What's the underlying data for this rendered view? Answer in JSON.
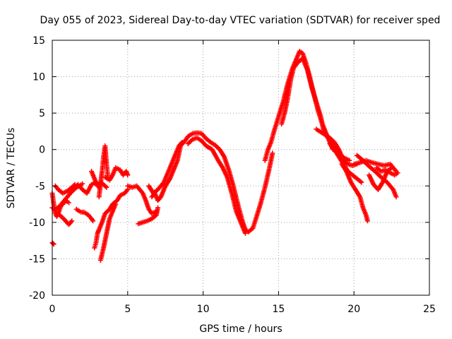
{
  "chart_data": {
    "type": "scatter",
    "title": "Day 055 of 2023, Sidereal Day-to-day VTEC variation (SDTVAR) for receiver sped",
    "xlabel": "GPS time / hours",
    "ylabel": "SDTVAR / TECUs",
    "xlim": [
      0,
      25
    ],
    "ylim": [
      -20,
      15
    ],
    "xticks": [
      0,
      5,
      10,
      15,
      20,
      25
    ],
    "yticks": [
      -20,
      -15,
      -10,
      -5,
      0,
      5,
      10,
      15
    ],
    "grid": true,
    "marker": "+",
    "series": [
      {
        "name": "SDTVAR",
        "color": "#ff0000",
        "points": [
          [
            0.0,
            -12.8
          ],
          [
            0.1,
            -13.0
          ],
          [
            0.0,
            -6.0
          ],
          [
            0.1,
            -7.5
          ],
          [
            0.2,
            -8.8
          ],
          [
            0.3,
            -9.2
          ],
          [
            0.45,
            -8.5
          ],
          [
            0.6,
            -7.5
          ],
          [
            0.8,
            -7.0
          ],
          [
            1.0,
            -6.5
          ],
          [
            1.2,
            -6.0
          ],
          [
            1.4,
            -5.6
          ],
          [
            1.6,
            -5.2
          ],
          [
            1.8,
            -5.0
          ],
          [
            2.0,
            -4.7
          ],
          [
            0.0,
            -8.0
          ],
          [
            0.2,
            -8.3
          ],
          [
            0.4,
            -7.9
          ],
          [
            0.7,
            -7.5
          ],
          [
            0.9,
            -7.0
          ],
          [
            1.1,
            -7.3
          ],
          [
            0.2,
            -5.0
          ],
          [
            0.4,
            -5.5
          ],
          [
            0.7,
            -6.0
          ],
          [
            1.0,
            -5.7
          ],
          [
            1.3,
            -5.2
          ],
          [
            1.5,
            -4.8
          ],
          [
            0.5,
            -9.0
          ],
          [
            0.8,
            -9.6
          ],
          [
            1.1,
            -10.3
          ],
          [
            1.3,
            -9.8
          ],
          [
            1.5,
            -5.2
          ],
          [
            1.7,
            -4.8
          ],
          [
            2.0,
            -5.5
          ],
          [
            2.3,
            -6.0
          ],
          [
            2.6,
            -4.8
          ],
          [
            2.9,
            -4.5
          ],
          [
            3.1,
            -5.2
          ],
          [
            1.6,
            -8.2
          ],
          [
            1.9,
            -8.6
          ],
          [
            2.1,
            -8.6
          ],
          [
            2.4,
            -9.0
          ],
          [
            2.6,
            -9.5
          ],
          [
            2.7,
            -9.8
          ],
          [
            2.6,
            -3.0
          ],
          [
            2.8,
            -4.0
          ],
          [
            3.0,
            -5.0
          ],
          [
            3.2,
            -4.5
          ],
          [
            3.4,
            -4.8
          ],
          [
            3.6,
            -5.2
          ],
          [
            3.1,
            -6.5
          ],
          [
            3.3,
            -3.0
          ],
          [
            3.4,
            -1.0
          ],
          [
            3.5,
            0.5
          ],
          [
            3.6,
            -2.0
          ],
          [
            3.7,
            -4.0
          ],
          [
            2.8,
            -13.5
          ],
          [
            2.9,
            -12.8
          ],
          [
            3.0,
            -11.5
          ],
          [
            3.1,
            -11.0
          ],
          [
            3.3,
            -10.0
          ],
          [
            3.5,
            -8.8
          ],
          [
            3.8,
            -8.2
          ],
          [
            4.0,
            -7.5
          ],
          [
            4.3,
            -7.0
          ],
          [
            4.5,
            -6.3
          ],
          [
            4.8,
            -6.0
          ],
          [
            5.0,
            -5.5
          ],
          [
            3.2,
            -15.2
          ],
          [
            3.4,
            -13.5
          ],
          [
            3.6,
            -11.5
          ],
          [
            3.8,
            -9.5
          ],
          [
            4.0,
            -8.5
          ],
          [
            4.2,
            -7.5
          ],
          [
            3.5,
            -3.8
          ],
          [
            3.8,
            -4.2
          ],
          [
            4.0,
            -3.5
          ],
          [
            4.2,
            -2.5
          ],
          [
            4.5,
            -2.8
          ],
          [
            4.7,
            -3.5
          ],
          [
            4.9,
            -3.0
          ],
          [
            5.0,
            -3.5
          ],
          [
            5.0,
            -5.0
          ],
          [
            5.3,
            -5.2
          ],
          [
            5.6,
            -5.0
          ],
          [
            5.8,
            -5.5
          ],
          [
            6.0,
            -6.0
          ],
          [
            6.2,
            -7.0
          ],
          [
            6.4,
            -8.2
          ],
          [
            6.6,
            -8.8
          ],
          [
            6.9,
            -8.5
          ],
          [
            5.7,
            -10.2
          ],
          [
            6.0,
            -10.0
          ],
          [
            6.3,
            -9.8
          ],
          [
            6.6,
            -9.5
          ],
          [
            6.9,
            -9.0
          ],
          [
            7.0,
            -8.0
          ],
          [
            6.4,
            -5.0
          ],
          [
            6.7,
            -6.0
          ],
          [
            7.0,
            -5.5
          ],
          [
            7.2,
            -5.0
          ],
          [
            7.4,
            -4.5
          ],
          [
            7.6,
            -3.5
          ],
          [
            7.8,
            -2.5
          ],
          [
            8.0,
            -1.5
          ],
          [
            8.2,
            -0.5
          ],
          [
            8.4,
            0.5
          ],
          [
            8.6,
            1.0
          ],
          [
            6.6,
            -6.5
          ],
          [
            6.8,
            -6.0
          ],
          [
            7.0,
            -7.0
          ],
          [
            7.2,
            -6.5
          ],
          [
            7.5,
            -5.0
          ],
          [
            7.8,
            -4.0
          ],
          [
            8.0,
            -3.0
          ],
          [
            8.3,
            -1.5
          ],
          [
            8.5,
            0.5
          ],
          [
            8.8,
            1.2
          ],
          [
            9.0,
            1.8
          ],
          [
            9.3,
            2.2
          ],
          [
            9.6,
            2.3
          ],
          [
            9.9,
            2.2
          ],
          [
            10.2,
            1.5
          ],
          [
            10.5,
            1.0
          ],
          [
            10.8,
            0.6
          ],
          [
            11.1,
            0.0
          ],
          [
            11.4,
            -1.0
          ],
          [
            11.7,
            -2.8
          ],
          [
            12.0,
            -5.0
          ],
          [
            12.3,
            -7.5
          ],
          [
            12.6,
            -9.8
          ],
          [
            12.8,
            -11.0
          ],
          [
            13.0,
            -11.3
          ],
          [
            13.3,
            -10.8
          ],
          [
            13.5,
            -9.5
          ],
          [
            13.8,
            -7.5
          ],
          [
            14.1,
            -5.2
          ],
          [
            14.4,
            -2.5
          ],
          [
            14.6,
            -0.5
          ],
          [
            9.0,
            0.8
          ],
          [
            9.3,
            1.4
          ],
          [
            9.6,
            1.6
          ],
          [
            9.9,
            1.2
          ],
          [
            10.2,
            0.5
          ],
          [
            10.6,
            0.0
          ],
          [
            11.0,
            -1.5
          ],
          [
            11.3,
            -2.5
          ],
          [
            11.6,
            -3.8
          ],
          [
            11.9,
            -6.0
          ],
          [
            12.2,
            -8.5
          ],
          [
            12.5,
            -10.0
          ],
          [
            12.8,
            -11.5
          ],
          [
            14.1,
            -1.5
          ],
          [
            14.3,
            0.0
          ],
          [
            14.5,
            1.0
          ],
          [
            14.7,
            2.5
          ],
          [
            15.0,
            4.5
          ],
          [
            15.3,
            6.5
          ],
          [
            15.6,
            9.0
          ],
          [
            15.9,
            11.0
          ],
          [
            16.2,
            12.5
          ],
          [
            16.4,
            13.5
          ],
          [
            16.6,
            13.2
          ],
          [
            16.8,
            12.0
          ],
          [
            17.0,
            10.5
          ],
          [
            17.3,
            8.0
          ],
          [
            17.6,
            5.5
          ],
          [
            17.9,
            3.5
          ],
          [
            18.2,
            2.0
          ],
          [
            18.5,
            1.0
          ],
          [
            18.8,
            0.5
          ],
          [
            19.1,
            -0.8
          ],
          [
            19.4,
            -1.2
          ],
          [
            19.7,
            -1.5
          ],
          [
            15.2,
            3.5
          ],
          [
            15.4,
            5.0
          ],
          [
            15.6,
            7.0
          ],
          [
            15.8,
            9.5
          ],
          [
            16.0,
            11.2
          ],
          [
            16.3,
            12.0
          ],
          [
            16.6,
            12.5
          ],
          [
            16.9,
            11.0
          ],
          [
            17.2,
            8.5
          ],
          [
            17.5,
            6.5
          ],
          [
            17.8,
            4.5
          ],
          [
            18.0,
            2.5
          ],
          [
            18.3,
            1.5
          ],
          [
            18.6,
            0.0
          ],
          [
            17.5,
            2.8
          ],
          [
            17.8,
            2.4
          ],
          [
            18.1,
            2.0
          ],
          [
            18.4,
            1.6
          ],
          [
            18.7,
            1.0
          ],
          [
            19.0,
            0.0
          ],
          [
            19.3,
            -1.5
          ],
          [
            19.6,
            -2.0
          ],
          [
            19.9,
            -2.2
          ],
          [
            20.2,
            -2.0
          ],
          [
            18.4,
            0.8
          ],
          [
            18.7,
            0.0
          ],
          [
            19.0,
            -1.0
          ],
          [
            19.3,
            -2.0
          ],
          [
            19.6,
            -3.0
          ],
          [
            19.9,
            -3.5
          ],
          [
            20.2,
            -4.0
          ],
          [
            20.5,
            -4.5
          ],
          [
            19.2,
            -2.0
          ],
          [
            19.5,
            -3.0
          ],
          [
            19.8,
            -4.5
          ],
          [
            20.1,
            -5.5
          ],
          [
            20.4,
            -6.5
          ],
          [
            20.6,
            -8.0
          ],
          [
            20.8,
            -9.0
          ],
          [
            20.9,
            -9.8
          ],
          [
            20.0,
            -2.0
          ],
          [
            20.4,
            -1.8
          ],
          [
            20.8,
            -1.5
          ],
          [
            21.2,
            -1.8
          ],
          [
            21.6,
            -2.0
          ],
          [
            22.0,
            -2.2
          ],
          [
            22.4,
            -2.0
          ],
          [
            22.8,
            -3.0
          ],
          [
            20.2,
            -0.8
          ],
          [
            20.6,
            -1.5
          ],
          [
            21.0,
            -2.3
          ],
          [
            21.4,
            -3.0
          ],
          [
            21.8,
            -3.8
          ],
          [
            22.2,
            -4.5
          ],
          [
            22.6,
            -5.5
          ],
          [
            22.8,
            -6.5
          ],
          [
            21.0,
            -3.5
          ],
          [
            21.3,
            -4.8
          ],
          [
            21.6,
            -5.5
          ],
          [
            21.9,
            -4.5
          ],
          [
            22.2,
            -3.0
          ],
          [
            22.5,
            -2.5
          ],
          [
            21.5,
            -2.5
          ],
          [
            21.8,
            -3.0
          ],
          [
            22.1,
            -2.8
          ],
          [
            22.4,
            -3.2
          ],
          [
            22.7,
            -3.5
          ],
          [
            22.9,
            -3.2
          ]
        ]
      }
    ]
  }
}
